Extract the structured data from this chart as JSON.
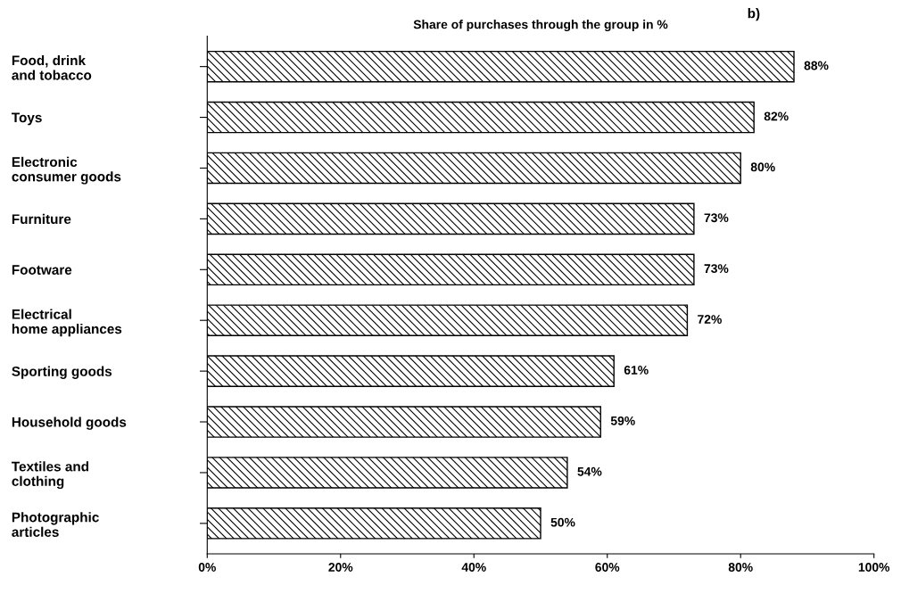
{
  "chart_data": {
    "type": "bar",
    "orientation": "horizontal",
    "title": "Share of purchases through the group in %",
    "annotations": [
      "b)"
    ],
    "categories": [
      "Food, drink\nand tobacco",
      "Toys",
      "Electronic\nconsumer goods",
      "Furniture",
      "Footware",
      "Electrical\nhome appliances",
      "Sporting goods",
      "Household goods",
      "Textiles and\nclothing",
      "Photographic\narticles"
    ],
    "values": [
      88,
      82,
      80,
      73,
      73,
      72,
      61,
      59,
      54,
      50
    ],
    "value_labels": [
      "88%",
      "82%",
      "80%",
      "73%",
      "73%",
      "72%",
      "61%",
      "59%",
      "54%",
      "50%"
    ],
    "color": "#000000",
    "xlim": [
      0,
      100
    ],
    "xticks": [
      {
        "value": 0,
        "label": "0%"
      },
      {
        "value": 20,
        "label": "20%"
      },
      {
        "value": 40,
        "label": "40%"
      },
      {
        "value": 60,
        "label": "60%"
      },
      {
        "value": 80,
        "label": "80%"
      },
      {
        "value": 100,
        "label": "100%"
      }
    ],
    "grid": false
  }
}
